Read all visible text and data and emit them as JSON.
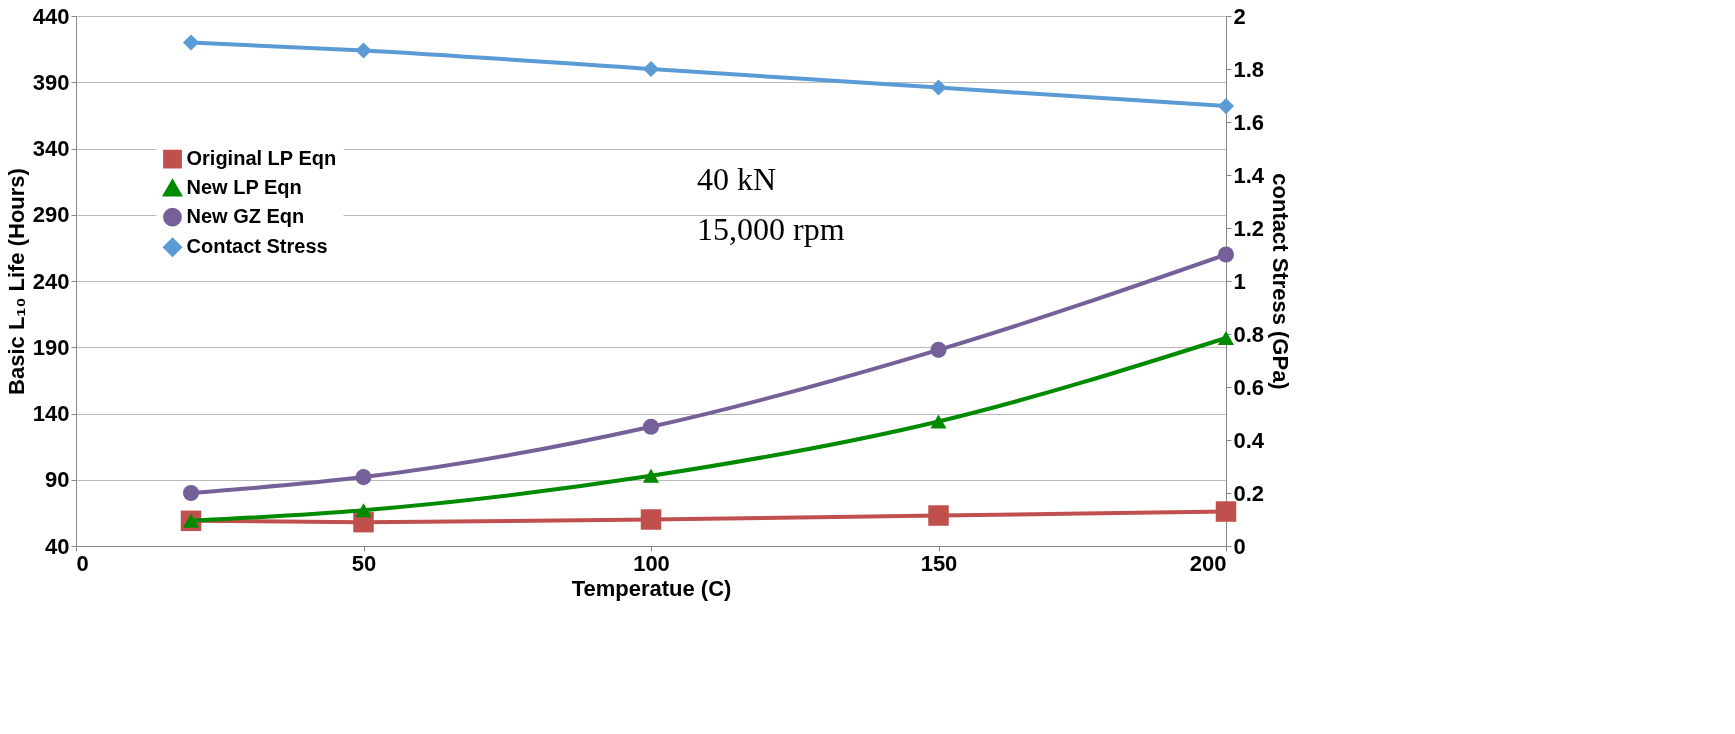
{
  "chart_data": {
    "type": "line",
    "xlabel": "Temperatue (C)",
    "ylabel": "Basic L₁₀ Life (Hours)",
    "y2label": "contact Stress (GPa)",
    "x": [
      20,
      50,
      100,
      150,
      200
    ],
    "series": [
      {
        "name": "Original LP Eqn",
        "color": "#c0504d",
        "marker": "square",
        "values": [
          59,
          58,
          60,
          63,
          66
        ]
      },
      {
        "name": "New LP Eqn",
        "color": "#008a00",
        "marker": "triangle",
        "values": [
          59,
          67,
          93,
          134,
          197
        ]
      },
      {
        "name": "New GZ Eqn",
        "color": "#76609a",
        "marker": "circle",
        "values": [
          80,
          92,
          130,
          188,
          260
        ]
      },
      {
        "name": "Contact Stress",
        "color": "#5b9bd5",
        "marker": "diamond",
        "axis": "y2",
        "values": [
          1.9,
          1.87,
          1.8,
          1.73,
          1.66
        ]
      }
    ],
    "xlim": [
      0,
      200
    ],
    "xticks": [
      0,
      50,
      100,
      150,
      200
    ],
    "ylim": [
      40,
      440
    ],
    "yticks": [
      40,
      90,
      140,
      190,
      240,
      290,
      340,
      390,
      440
    ],
    "y2lim": [
      0,
      2
    ],
    "y2ticks": [
      0,
      0.2,
      0.4,
      0.6,
      0.8,
      1,
      1.2,
      1.4,
      1.6,
      1.8,
      2
    ],
    "grid": "y",
    "legend": "top left",
    "line_style": "solid",
    "annotations": [
      "40 kN",
      "15,000 rpm"
    ]
  }
}
